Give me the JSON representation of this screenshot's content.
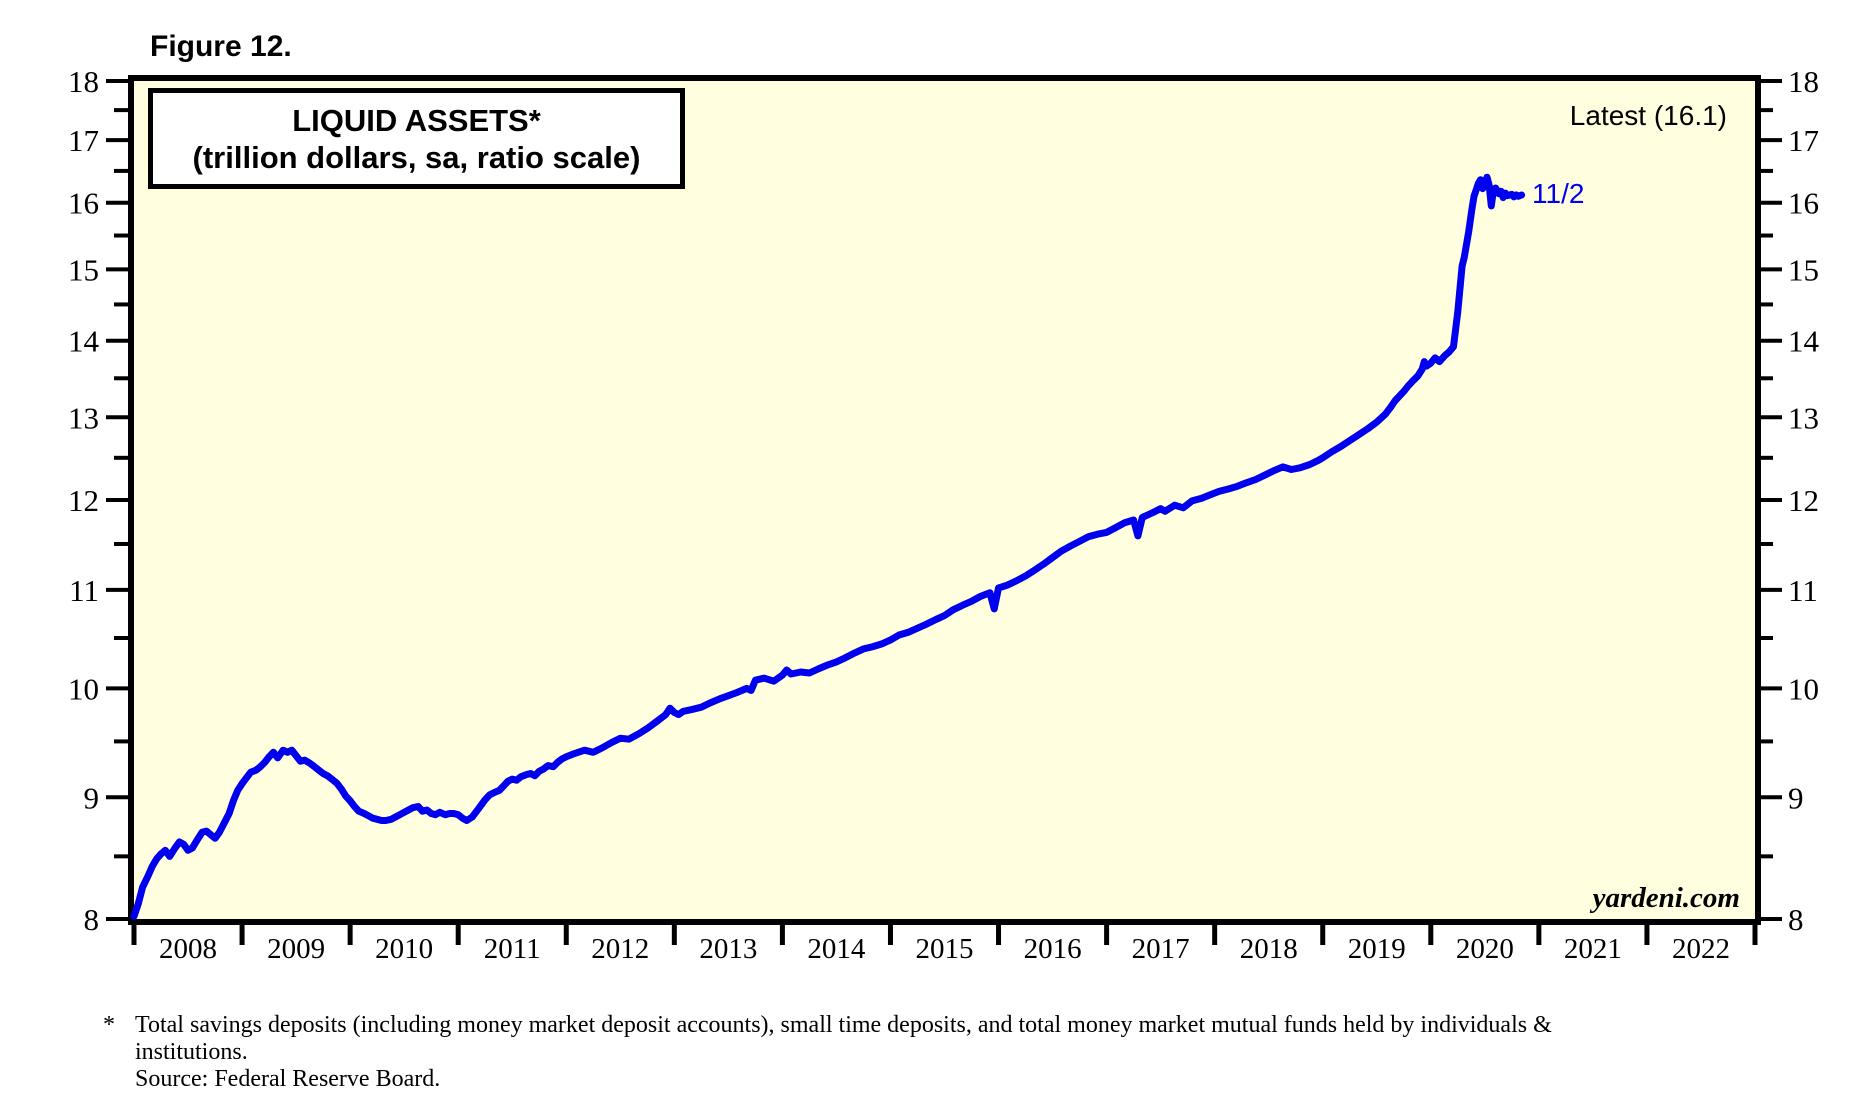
{
  "figure_label": "Figure 12.",
  "title_line1": "LIQUID ASSETS*",
  "title_line2": "(trillion dollars, sa, ratio scale)",
  "latest_label": "Latest (16.1)",
  "latest_value": 16.1,
  "series_end_label": "11/2",
  "watermark": "yardeni.com",
  "footnote": {
    "marker": "*",
    "line1": "Total savings deposits (including money market deposit accounts), small time deposits, and total money market mutual funds held by individuals &",
    "line2": "institutions.",
    "line3": "Source: Federal Reserve Board."
  },
  "colors": {
    "line": "#0000EE",
    "plot_bg": "#FFFFE0",
    "axis": "#000000",
    "page_bg": "#FFFFFF"
  },
  "chart_data": {
    "type": "line",
    "title": "LIQUID ASSETS*",
    "subtitle": "(trillion dollars, sa, ratio scale)",
    "y_scale": "log",
    "ylim": [
      8,
      18
    ],
    "xlim": [
      2008,
      2023
    ],
    "y_ticks": [
      8,
      9,
      10,
      11,
      12,
      13,
      14,
      15,
      16,
      17,
      18
    ],
    "y_minor_ticks": [
      8.5,
      9.5,
      10.5,
      11.5,
      12.5,
      13.5,
      14.5,
      15.5,
      16.5,
      17.5
    ],
    "x_tick_years": [
      "2008",
      "2009",
      "2010",
      "2011",
      "2012",
      "2013",
      "2014",
      "2015",
      "2016",
      "2017",
      "2018",
      "2019",
      "2020",
      "2021",
      "2022"
    ],
    "grid": false,
    "legend_position": "none",
    "annotations": {
      "latest": "Latest (16.1)",
      "end_point": "11/2",
      "watermark": "yardeni.com"
    },
    "series": [
      {
        "name": "Liquid Assets (trillion dollars, sa)",
        "points": [
          [
            2008.0,
            8.02
          ],
          [
            2008.04,
            8.12
          ],
          [
            2008.08,
            8.25
          ],
          [
            2008.13,
            8.34
          ],
          [
            2008.17,
            8.42
          ],
          [
            2008.21,
            8.48
          ],
          [
            2008.25,
            8.52
          ],
          [
            2008.29,
            8.55
          ],
          [
            2008.33,
            8.5
          ],
          [
            2008.38,
            8.57
          ],
          [
            2008.42,
            8.62
          ],
          [
            2008.46,
            8.6
          ],
          [
            2008.5,
            8.55
          ],
          [
            2008.54,
            8.57
          ],
          [
            2008.58,
            8.63
          ],
          [
            2008.63,
            8.7
          ],
          [
            2008.67,
            8.71
          ],
          [
            2008.71,
            8.68
          ],
          [
            2008.75,
            8.65
          ],
          [
            2008.79,
            8.7
          ],
          [
            2008.83,
            8.77
          ],
          [
            2008.88,
            8.86
          ],
          [
            2008.92,
            8.97
          ],
          [
            2008.96,
            9.06
          ],
          [
            2009.0,
            9.12
          ],
          [
            2009.04,
            9.17
          ],
          [
            2009.08,
            9.22
          ],
          [
            2009.13,
            9.24
          ],
          [
            2009.17,
            9.27
          ],
          [
            2009.21,
            9.31
          ],
          [
            2009.25,
            9.36
          ],
          [
            2009.29,
            9.4
          ],
          [
            2009.33,
            9.35
          ],
          [
            2009.38,
            9.42
          ],
          [
            2009.42,
            9.4
          ],
          [
            2009.46,
            9.42
          ],
          [
            2009.5,
            9.37
          ],
          [
            2009.54,
            9.32
          ],
          [
            2009.58,
            9.33
          ],
          [
            2009.63,
            9.3
          ],
          [
            2009.67,
            9.27
          ],
          [
            2009.71,
            9.24
          ],
          [
            2009.75,
            9.21
          ],
          [
            2009.79,
            9.19
          ],
          [
            2009.83,
            9.16
          ],
          [
            2009.88,
            9.12
          ],
          [
            2009.92,
            9.07
          ],
          [
            2009.96,
            9.01
          ],
          [
            2010.0,
            8.97
          ],
          [
            2010.04,
            8.92
          ],
          [
            2010.08,
            8.88
          ],
          [
            2010.13,
            8.86
          ],
          [
            2010.17,
            8.84
          ],
          [
            2010.21,
            8.82
          ],
          [
            2010.25,
            8.81
          ],
          [
            2010.29,
            8.8
          ],
          [
            2010.33,
            8.8
          ],
          [
            2010.38,
            8.81
          ],
          [
            2010.42,
            8.83
          ],
          [
            2010.46,
            8.85
          ],
          [
            2010.5,
            8.87
          ],
          [
            2010.54,
            8.89
          ],
          [
            2010.58,
            8.91
          ],
          [
            2010.63,
            8.92
          ],
          [
            2010.67,
            8.88
          ],
          [
            2010.71,
            8.89
          ],
          [
            2010.75,
            8.86
          ],
          [
            2010.79,
            8.85
          ],
          [
            2010.83,
            8.87
          ],
          [
            2010.88,
            8.85
          ],
          [
            2010.92,
            8.86
          ],
          [
            2010.96,
            8.86
          ],
          [
            2011.0,
            8.85
          ],
          [
            2011.04,
            8.82
          ],
          [
            2011.08,
            8.8
          ],
          [
            2011.13,
            8.83
          ],
          [
            2011.17,
            8.88
          ],
          [
            2011.21,
            8.93
          ],
          [
            2011.25,
            8.98
          ],
          [
            2011.29,
            9.02
          ],
          [
            2011.33,
            9.04
          ],
          [
            2011.38,
            9.06
          ],
          [
            2011.42,
            9.1
          ],
          [
            2011.46,
            9.14
          ],
          [
            2011.5,
            9.16
          ],
          [
            2011.54,
            9.15
          ],
          [
            2011.58,
            9.18
          ],
          [
            2011.63,
            9.2
          ],
          [
            2011.67,
            9.21
          ],
          [
            2011.71,
            9.19
          ],
          [
            2011.75,
            9.23
          ],
          [
            2011.79,
            9.25
          ],
          [
            2011.83,
            9.28
          ],
          [
            2011.88,
            9.27
          ],
          [
            2011.92,
            9.31
          ],
          [
            2011.96,
            9.34
          ],
          [
            2012.0,
            9.36
          ],
          [
            2012.08,
            9.39
          ],
          [
            2012.17,
            9.42
          ],
          [
            2012.25,
            9.4
          ],
          [
            2012.33,
            9.44
          ],
          [
            2012.42,
            9.49
          ],
          [
            2012.5,
            9.53
          ],
          [
            2012.58,
            9.52
          ],
          [
            2012.67,
            9.57
          ],
          [
            2012.75,
            9.62
          ],
          [
            2012.83,
            9.68
          ],
          [
            2012.92,
            9.75
          ],
          [
            2012.96,
            9.81
          ],
          [
            2013.0,
            9.77
          ],
          [
            2013.04,
            9.75
          ],
          [
            2013.08,
            9.78
          ],
          [
            2013.17,
            9.8
          ],
          [
            2013.25,
            9.82
          ],
          [
            2013.33,
            9.86
          ],
          [
            2013.42,
            9.9
          ],
          [
            2013.5,
            9.93
          ],
          [
            2013.58,
            9.96
          ],
          [
            2013.67,
            10.0
          ],
          [
            2013.71,
            9.98
          ],
          [
            2013.75,
            10.08
          ],
          [
            2013.83,
            10.1
          ],
          [
            2013.92,
            10.07
          ],
          [
            2014.0,
            10.13
          ],
          [
            2014.04,
            10.18
          ],
          [
            2014.08,
            10.14
          ],
          [
            2014.17,
            10.16
          ],
          [
            2014.25,
            10.15
          ],
          [
            2014.33,
            10.19
          ],
          [
            2014.42,
            10.23
          ],
          [
            2014.5,
            10.26
          ],
          [
            2014.58,
            10.3
          ],
          [
            2014.67,
            10.35
          ],
          [
            2014.75,
            10.39
          ],
          [
            2014.83,
            10.41
          ],
          [
            2014.92,
            10.44
          ],
          [
            2015.0,
            10.48
          ],
          [
            2015.08,
            10.53
          ],
          [
            2015.17,
            10.56
          ],
          [
            2015.25,
            10.6
          ],
          [
            2015.33,
            10.64
          ],
          [
            2015.42,
            10.69
          ],
          [
            2015.5,
            10.73
          ],
          [
            2015.58,
            10.79
          ],
          [
            2015.67,
            10.84
          ],
          [
            2015.75,
            10.88
          ],
          [
            2015.83,
            10.93
          ],
          [
            2015.92,
            10.97
          ],
          [
            2015.96,
            10.8
          ],
          [
            2016.0,
            11.02
          ],
          [
            2016.08,
            11.05
          ],
          [
            2016.17,
            11.1
          ],
          [
            2016.25,
            11.15
          ],
          [
            2016.33,
            11.21
          ],
          [
            2016.42,
            11.28
          ],
          [
            2016.5,
            11.35
          ],
          [
            2016.58,
            11.42
          ],
          [
            2016.67,
            11.48
          ],
          [
            2016.75,
            11.53
          ],
          [
            2016.83,
            11.58
          ],
          [
            2016.92,
            11.61
          ],
          [
            2017.0,
            11.63
          ],
          [
            2017.08,
            11.68
          ],
          [
            2017.17,
            11.74
          ],
          [
            2017.25,
            11.77
          ],
          [
            2017.29,
            11.59
          ],
          [
            2017.33,
            11.8
          ],
          [
            2017.42,
            11.85
          ],
          [
            2017.5,
            11.9
          ],
          [
            2017.54,
            11.87
          ],
          [
            2017.63,
            11.94
          ],
          [
            2017.71,
            11.91
          ],
          [
            2017.79,
            11.99
          ],
          [
            2017.88,
            12.02
          ],
          [
            2017.96,
            12.06
          ],
          [
            2018.04,
            12.1
          ],
          [
            2018.13,
            12.13
          ],
          [
            2018.21,
            12.16
          ],
          [
            2018.29,
            12.2
          ],
          [
            2018.38,
            12.24
          ],
          [
            2018.46,
            12.29
          ],
          [
            2018.54,
            12.34
          ],
          [
            2018.63,
            12.39
          ],
          [
            2018.71,
            12.36
          ],
          [
            2018.79,
            12.38
          ],
          [
            2018.88,
            12.42
          ],
          [
            2018.96,
            12.47
          ],
          [
            2019.0,
            12.5
          ],
          [
            2019.08,
            12.57
          ],
          [
            2019.17,
            12.64
          ],
          [
            2019.25,
            12.71
          ],
          [
            2019.33,
            12.78
          ],
          [
            2019.42,
            12.86
          ],
          [
            2019.5,
            12.94
          ],
          [
            2019.58,
            13.04
          ],
          [
            2019.63,
            13.13
          ],
          [
            2019.67,
            13.21
          ],
          [
            2019.75,
            13.33
          ],
          [
            2019.79,
            13.4
          ],
          [
            2019.83,
            13.46
          ],
          [
            2019.88,
            13.53
          ],
          [
            2019.92,
            13.62
          ],
          [
            2019.94,
            13.72
          ],
          [
            2019.96,
            13.66
          ],
          [
            2020.0,
            13.7
          ],
          [
            2020.04,
            13.77
          ],
          [
            2020.08,
            13.72
          ],
          [
            2020.13,
            13.8
          ],
          [
            2020.17,
            13.85
          ],
          [
            2020.21,
            13.92
          ],
          [
            2020.25,
            14.4
          ],
          [
            2020.29,
            15.05
          ],
          [
            2020.31,
            15.18
          ],
          [
            2020.35,
            15.55
          ],
          [
            2020.38,
            15.9
          ],
          [
            2020.4,
            16.1
          ],
          [
            2020.42,
            16.2
          ],
          [
            2020.44,
            16.3
          ],
          [
            2020.46,
            16.36
          ],
          [
            2020.48,
            16.22
          ],
          [
            2020.5,
            16.31
          ],
          [
            2020.52,
            16.4
          ],
          [
            2020.54,
            16.27
          ],
          [
            2020.56,
            15.95
          ],
          [
            2020.58,
            16.2
          ],
          [
            2020.6,
            16.23
          ],
          [
            2020.63,
            16.14
          ],
          [
            2020.65,
            16.18
          ],
          [
            2020.67,
            16.08
          ],
          [
            2020.69,
            16.15
          ],
          [
            2020.71,
            16.11
          ],
          [
            2020.75,
            16.13
          ],
          [
            2020.77,
            16.09
          ],
          [
            2020.79,
            16.12
          ],
          [
            2020.81,
            16.1
          ],
          [
            2020.84,
            16.12
          ]
        ]
      }
    ]
  }
}
